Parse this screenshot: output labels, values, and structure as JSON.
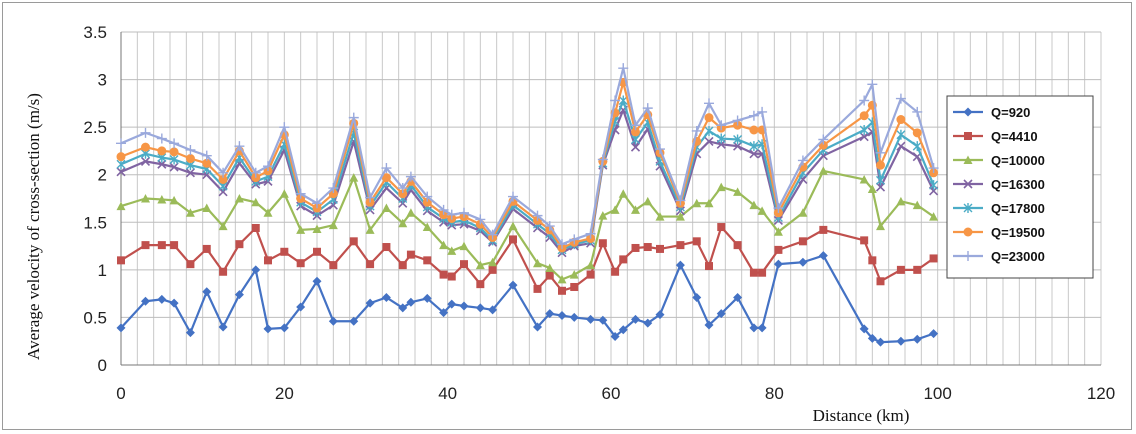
{
  "chart_data": {
    "type": "line",
    "xlabel": "Distance (km)",
    "ylabel": "Average velocity of cross-section (m/s)",
    "xlim": [
      0,
      120
    ],
    "ylim": [
      0,
      3.5
    ],
    "xticks": [
      "0",
      "20",
      "40",
      "60",
      "80",
      "100",
      "120"
    ],
    "yticks": [
      "0",
      "0.5",
      "1",
      "1.5",
      "2",
      "2.5",
      "3",
      "3.5"
    ],
    "grid": true,
    "legend_position": "right",
    "x": [
      0,
      3,
      5,
      6.5,
      8.5,
      10.5,
      12.5,
      14.5,
      16.5,
      18,
      20,
      22,
      24,
      26,
      28.5,
      30.5,
      32.5,
      34.5,
      35.5,
      37.5,
      39.5,
      40.5,
      42,
      44,
      45.5,
      48,
      51,
      52.5,
      54,
      55.5,
      57.5,
      59,
      60.5,
      61.5,
      63,
      64.5,
      66,
      68.5,
      70.5,
      72,
      73.5,
      75.5,
      77.5,
      78.5,
      80.5,
      83.5,
      86,
      91,
      92,
      93,
      95.5,
      97.5,
      99.5
    ],
    "series": [
      {
        "name": "Q=920",
        "color": "#4472c4",
        "marker": "diamond",
        "values": [
          0.39,
          0.67,
          0.69,
          0.65,
          0.34,
          0.77,
          0.4,
          0.74,
          1.0,
          0.38,
          0.39,
          0.61,
          0.88,
          0.46,
          0.46,
          0.65,
          0.71,
          0.6,
          0.66,
          0.7,
          0.55,
          0.64,
          0.62,
          0.6,
          0.58,
          0.84,
          0.4,
          0.54,
          0.52,
          0.5,
          0.48,
          0.47,
          0.3,
          0.37,
          0.48,
          0.44,
          0.53,
          1.05,
          0.71,
          0.42,
          0.54,
          0.71,
          0.39,
          0.39,
          1.06,
          1.08,
          1.15,
          0.38,
          0.28,
          0.24,
          0.25,
          0.27,
          0.33
        ]
      },
      {
        "name": "Q=4410",
        "color": "#c0504d",
        "marker": "square",
        "values": [
          1.1,
          1.26,
          1.26,
          1.26,
          1.06,
          1.22,
          0.98,
          1.27,
          1.44,
          1.1,
          1.19,
          1.07,
          1.19,
          1.05,
          1.3,
          1.06,
          1.24,
          1.05,
          1.16,
          1.1,
          0.95,
          0.93,
          1.06,
          0.85,
          1.0,
          1.32,
          0.8,
          0.94,
          0.78,
          0.82,
          0.95,
          1.28,
          0.98,
          1.11,
          1.23,
          1.24,
          1.22,
          1.26,
          1.3,
          1.04,
          1.45,
          1.26,
          0.97,
          0.97,
          1.21,
          1.3,
          1.42,
          1.31,
          1.1,
          0.88,
          1.0,
          1.0,
          1.12
        ]
      },
      {
        "name": "Q=10000",
        "color": "#9bbb59",
        "marker": "triangle",
        "values": [
          1.67,
          1.75,
          1.74,
          1.73,
          1.6,
          1.65,
          1.46,
          1.75,
          1.71,
          1.6,
          1.8,
          1.42,
          1.43,
          1.47,
          1.97,
          1.42,
          1.65,
          1.49,
          1.6,
          1.45,
          1.26,
          1.2,
          1.25,
          1.05,
          1.08,
          1.46,
          1.07,
          1.02,
          0.9,
          0.95,
          1.05,
          1.57,
          1.63,
          1.8,
          1.63,
          1.72,
          1.56,
          1.56,
          1.7,
          1.7,
          1.87,
          1.82,
          1.68,
          1.62,
          1.4,
          1.6,
          2.04,
          1.95,
          1.85,
          1.46,
          1.72,
          1.68,
          1.56
        ]
      },
      {
        "name": "Q=16300",
        "color": "#8064a2",
        "marker": "x",
        "values": [
          2.03,
          2.14,
          2.11,
          2.08,
          2.02,
          2.0,
          1.82,
          2.12,
          1.9,
          1.93,
          2.26,
          1.67,
          1.57,
          1.68,
          2.35,
          1.63,
          1.86,
          1.7,
          1.84,
          1.62,
          1.5,
          1.47,
          1.48,
          1.41,
          1.29,
          1.64,
          1.44,
          1.34,
          1.18,
          1.25,
          1.28,
          2.1,
          2.47,
          2.68,
          2.29,
          2.48,
          2.09,
          1.62,
          2.22,
          2.35,
          2.32,
          2.3,
          2.22,
          2.22,
          1.52,
          1.95,
          2.2,
          2.4,
          2.45,
          1.87,
          2.3,
          2.19,
          1.83
        ]
      },
      {
        "name": "Q=17800",
        "color": "#4bacc6",
        "marker": "asterisk",
        "values": [
          2.11,
          2.22,
          2.18,
          2.16,
          2.1,
          2.06,
          1.88,
          2.18,
          1.93,
          1.98,
          2.32,
          1.71,
          1.61,
          1.74,
          2.44,
          1.67,
          1.92,
          1.75,
          1.89,
          1.66,
          1.54,
          1.5,
          1.52,
          1.44,
          1.31,
          1.68,
          1.48,
          1.38,
          1.21,
          1.27,
          1.31,
          2.12,
          2.56,
          2.78,
          2.37,
          2.55,
          2.14,
          1.66,
          2.29,
          2.46,
          2.38,
          2.37,
          2.3,
          2.32,
          1.55,
          2.02,
          2.26,
          2.47,
          2.55,
          1.94,
          2.42,
          2.3,
          1.89
        ]
      },
      {
        "name": "Q=19500",
        "color": "#f79646",
        "marker": "circle",
        "values": [
          2.19,
          2.29,
          2.25,
          2.24,
          2.17,
          2.12,
          1.95,
          2.25,
          1.97,
          2.04,
          2.42,
          1.75,
          1.65,
          1.8,
          2.54,
          1.71,
          1.97,
          1.8,
          1.93,
          1.71,
          1.58,
          1.54,
          1.56,
          1.48,
          1.34,
          1.72,
          1.52,
          1.42,
          1.23,
          1.29,
          1.33,
          2.14,
          2.65,
          2.97,
          2.45,
          2.63,
          2.23,
          1.7,
          2.35,
          2.6,
          2.49,
          2.52,
          2.47,
          2.47,
          1.6,
          2.08,
          2.31,
          2.62,
          2.73,
          2.1,
          2.58,
          2.44,
          2.02
        ]
      },
      {
        "name": "Q=23000",
        "color": "#9aa9dc",
        "marker": "plus",
        "values": [
          2.33,
          2.44,
          2.38,
          2.33,
          2.26,
          2.2,
          2.02,
          2.3,
          2.02,
          2.09,
          2.5,
          1.8,
          1.7,
          1.86,
          2.6,
          1.76,
          2.07,
          1.86,
          1.98,
          1.77,
          1.63,
          1.58,
          1.6,
          1.53,
          1.37,
          1.77,
          1.57,
          1.46,
          1.27,
          1.32,
          1.38,
          2.16,
          2.78,
          3.12,
          2.52,
          2.7,
          2.27,
          1.73,
          2.46,
          2.75,
          2.52,
          2.57,
          2.62,
          2.66,
          1.65,
          2.15,
          2.37,
          2.78,
          2.95,
          2.23,
          2.8,
          2.66,
          2.07
        ]
      }
    ]
  }
}
